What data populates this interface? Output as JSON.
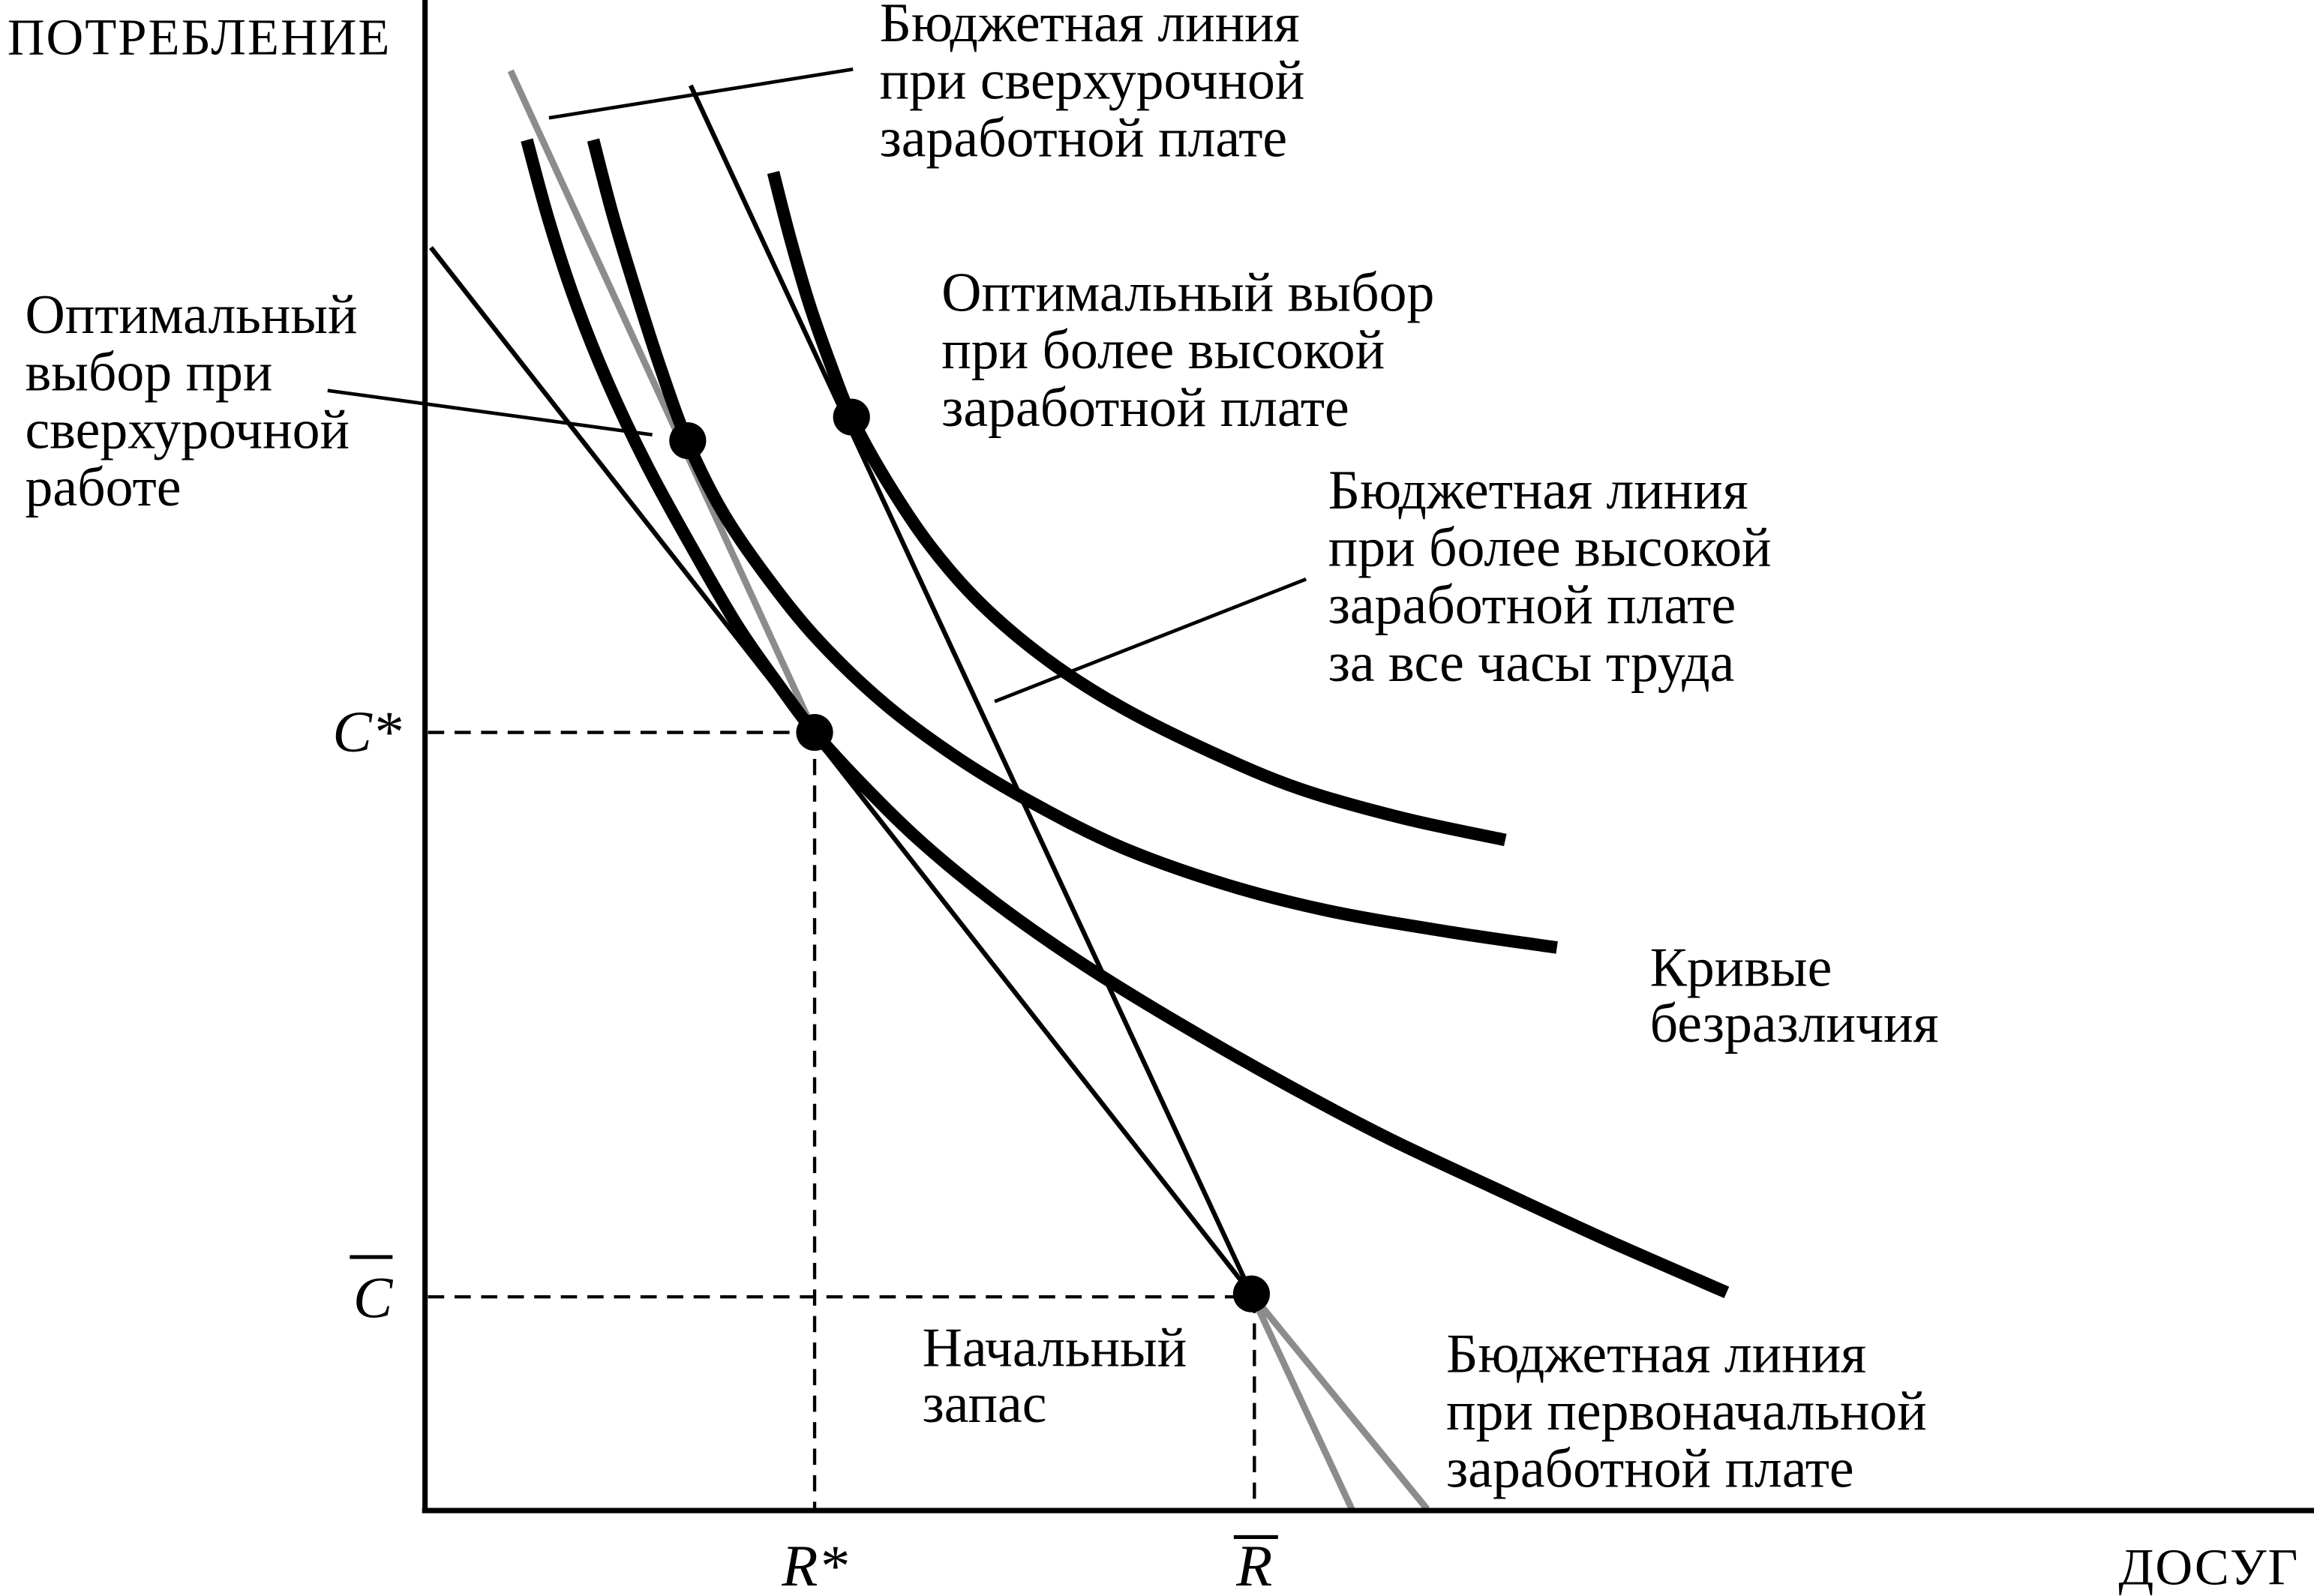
{
  "axes": {
    "y_label": "ПОТРЕБЛЕНИЕ",
    "x_label": "ДОСУГ"
  },
  "ticks": {
    "c_star": "C*",
    "c_bar": "C",
    "r_star": "R*",
    "r_bar": "R"
  },
  "labels": {
    "overtime_budget_line": [
      "Бюджетная линия",
      "при сверхурочной",
      "заработной плате"
    ],
    "higher_wage_optimum": [
      "Оптимальный выбор",
      "при более высокой",
      "заработной плате"
    ],
    "overtime_optimum": [
      "Оптимальный",
      "выбор при",
      "сверхурочной",
      "работе"
    ],
    "higher_wage_budget_line": [
      "Бюджетная линия",
      "при более высокой",
      "заработной плате",
      "за все часы труда"
    ],
    "indifference_curves": [
      "Кривые",
      "безразличия"
    ],
    "endowment": [
      "Начальный",
      "запас"
    ],
    "original_budget_line": [
      "Бюджетная линия",
      "при первоначальной",
      "заработной плате"
    ]
  },
  "colors": {
    "ink": "#000000",
    "gray_line": "#8c8c8c",
    "background": "#ffffff"
  }
}
